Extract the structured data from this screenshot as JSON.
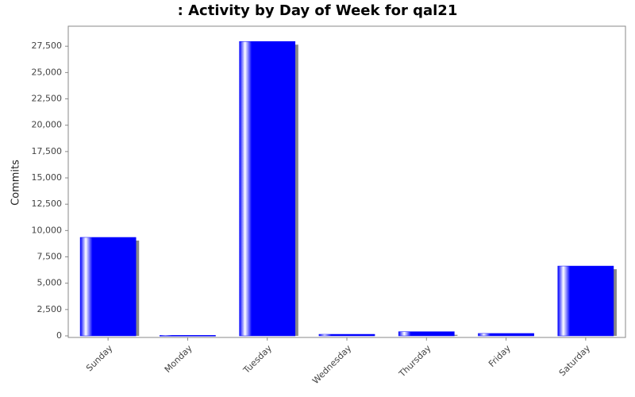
{
  "chart_data": {
    "type": "bar",
    "title": ": Activity by Day of Week for qal21",
    "y_label": "Commits",
    "categories": [
      "Sunday",
      "Monday",
      "Tuesday",
      "Wednesday",
      "Thursday",
      "Friday",
      "Saturday"
    ],
    "values": [
      9350,
      50,
      27950,
      150,
      400,
      230,
      6630
    ],
    "color": "#0000ff",
    "ylim": [
      0,
      29400
    ],
    "yticks": [
      0,
      {
        "value": 2500,
        "label": "2,500"
      },
      {
        "value": 5000,
        "label": "5,000"
      },
      {
        "value": 7500,
        "label": "7,500"
      },
      {
        "value": 10000,
        "label": "10,000"
      },
      {
        "value": 12500,
        "label": "12,500"
      },
      {
        "value": 15000,
        "label": "15,000"
      },
      {
        "value": 17500,
        "label": "17,500"
      },
      {
        "value": 20000,
        "label": "20,000"
      },
      {
        "value": 22500,
        "label": "22,500"
      },
      {
        "value": 25000,
        "label": "25,000"
      },
      {
        "value": 27500,
        "label": "27,500"
      }
    ],
    "grid": false
  }
}
